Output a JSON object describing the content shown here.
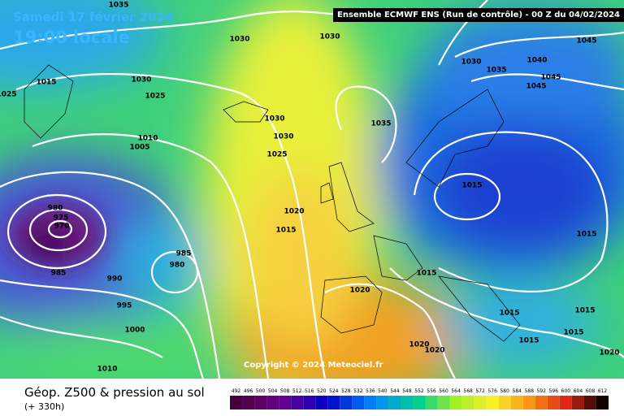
{
  "header": {
    "title": "Samedi 17 février 2024",
    "time": "19:00 locale",
    "model": "Ensemble ECMWF ENS  (Run de contrôle)  - 00 Z du 04/02/2024"
  },
  "copyright": "Copyright © 2024 Meteociel.fr",
  "footer": {
    "title": "Géop. Z500 & pression au sol",
    "lead": "(+ 330h)"
  },
  "scale": {
    "values": [
      492,
      496,
      500,
      504,
      508,
      512,
      516,
      520,
      524,
      528,
      532,
      536,
      540,
      544,
      548,
      552,
      556,
      560,
      564,
      568,
      572,
      576,
      580,
      584,
      588,
      592,
      596,
      600,
      604,
      608,
      612
    ]
  },
  "isobar_labels": [
    1035,
    1030,
    1030,
    1030,
    1040,
    1045,
    1035,
    1045,
    1045,
    1030,
    1025,
    1030,
    1030,
    1035,
    1025,
    1010,
    1005,
    1015,
    1025,
    980,
    975,
    970,
    985,
    980,
    985,
    990,
    995,
    1000,
    1010,
    1020,
    1015,
    1015,
    1015,
    1015,
    1020,
    1015,
    1015,
    1015,
    1020,
    1020,
    1020,
    1015
  ]
}
